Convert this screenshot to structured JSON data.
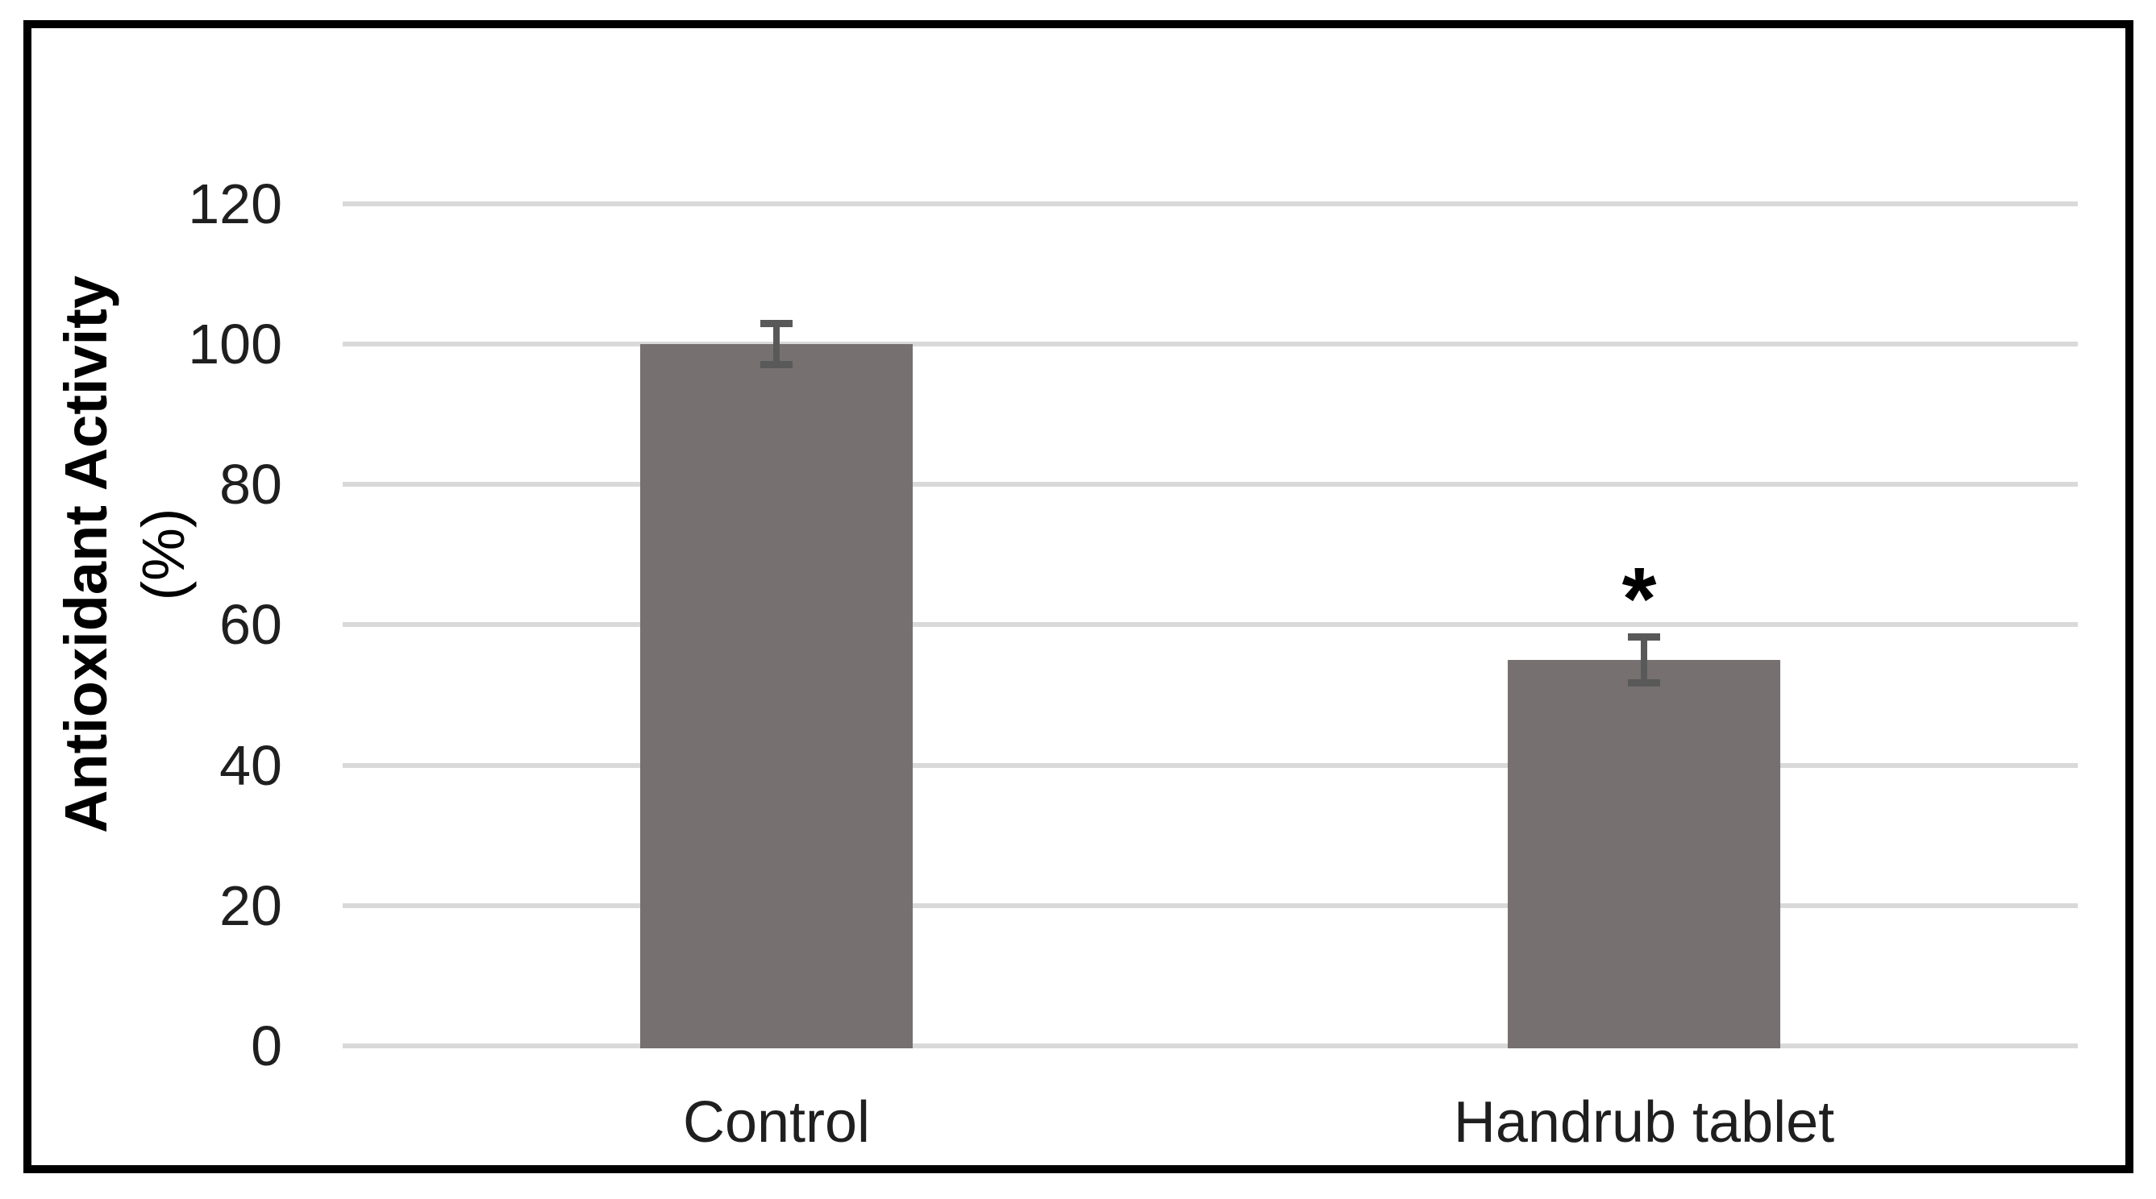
{
  "chart_data": {
    "type": "bar",
    "categories": [
      "Control",
      "Handrub tablet"
    ],
    "values": [
      100,
      55
    ],
    "errors": [
      3,
      3.3
    ],
    "annotations": [
      {
        "category_index": 1,
        "text": "*"
      }
    ],
    "ylabel_line1": "Antioxidant Activity",
    "ylabel_line2": "(%)",
    "xlabel": "",
    "title": "",
    "yticks": [
      0,
      20,
      40,
      60,
      80,
      100,
      120
    ],
    "ylim": [
      0,
      120
    ],
    "grid": true,
    "legend": "none",
    "colors": {
      "bar_fill": "#767071",
      "error_bar": "#595959",
      "gridline": "#d9d9d9",
      "frame_border": "#000000",
      "axis_text": "#1f1f1f",
      "background": "#ffffff"
    }
  }
}
